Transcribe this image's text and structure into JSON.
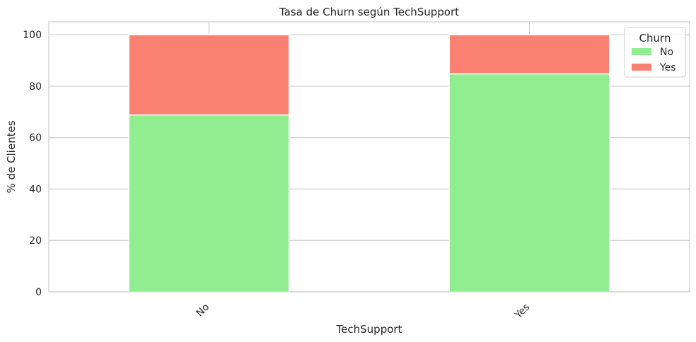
{
  "chart_data": {
    "type": "bar",
    "stacked": true,
    "title": "Tasa de Churn según TechSupport",
    "xlabel": "TechSupport",
    "ylabel": "% de Clientes",
    "categories": [
      "No",
      "Yes"
    ],
    "series": [
      {
        "name": "No",
        "values": [
          68.8,
          84.8
        ],
        "color": "#90ee90"
      },
      {
        "name": "Yes",
        "values": [
          31.2,
          15.2
        ],
        "color": "#fa8072"
      }
    ],
    "ylim": [
      0,
      105
    ],
    "yticks": [
      0,
      20,
      40,
      60,
      80,
      100
    ],
    "grid": true,
    "legend": {
      "title": "Churn",
      "placement": "top-right"
    }
  }
}
